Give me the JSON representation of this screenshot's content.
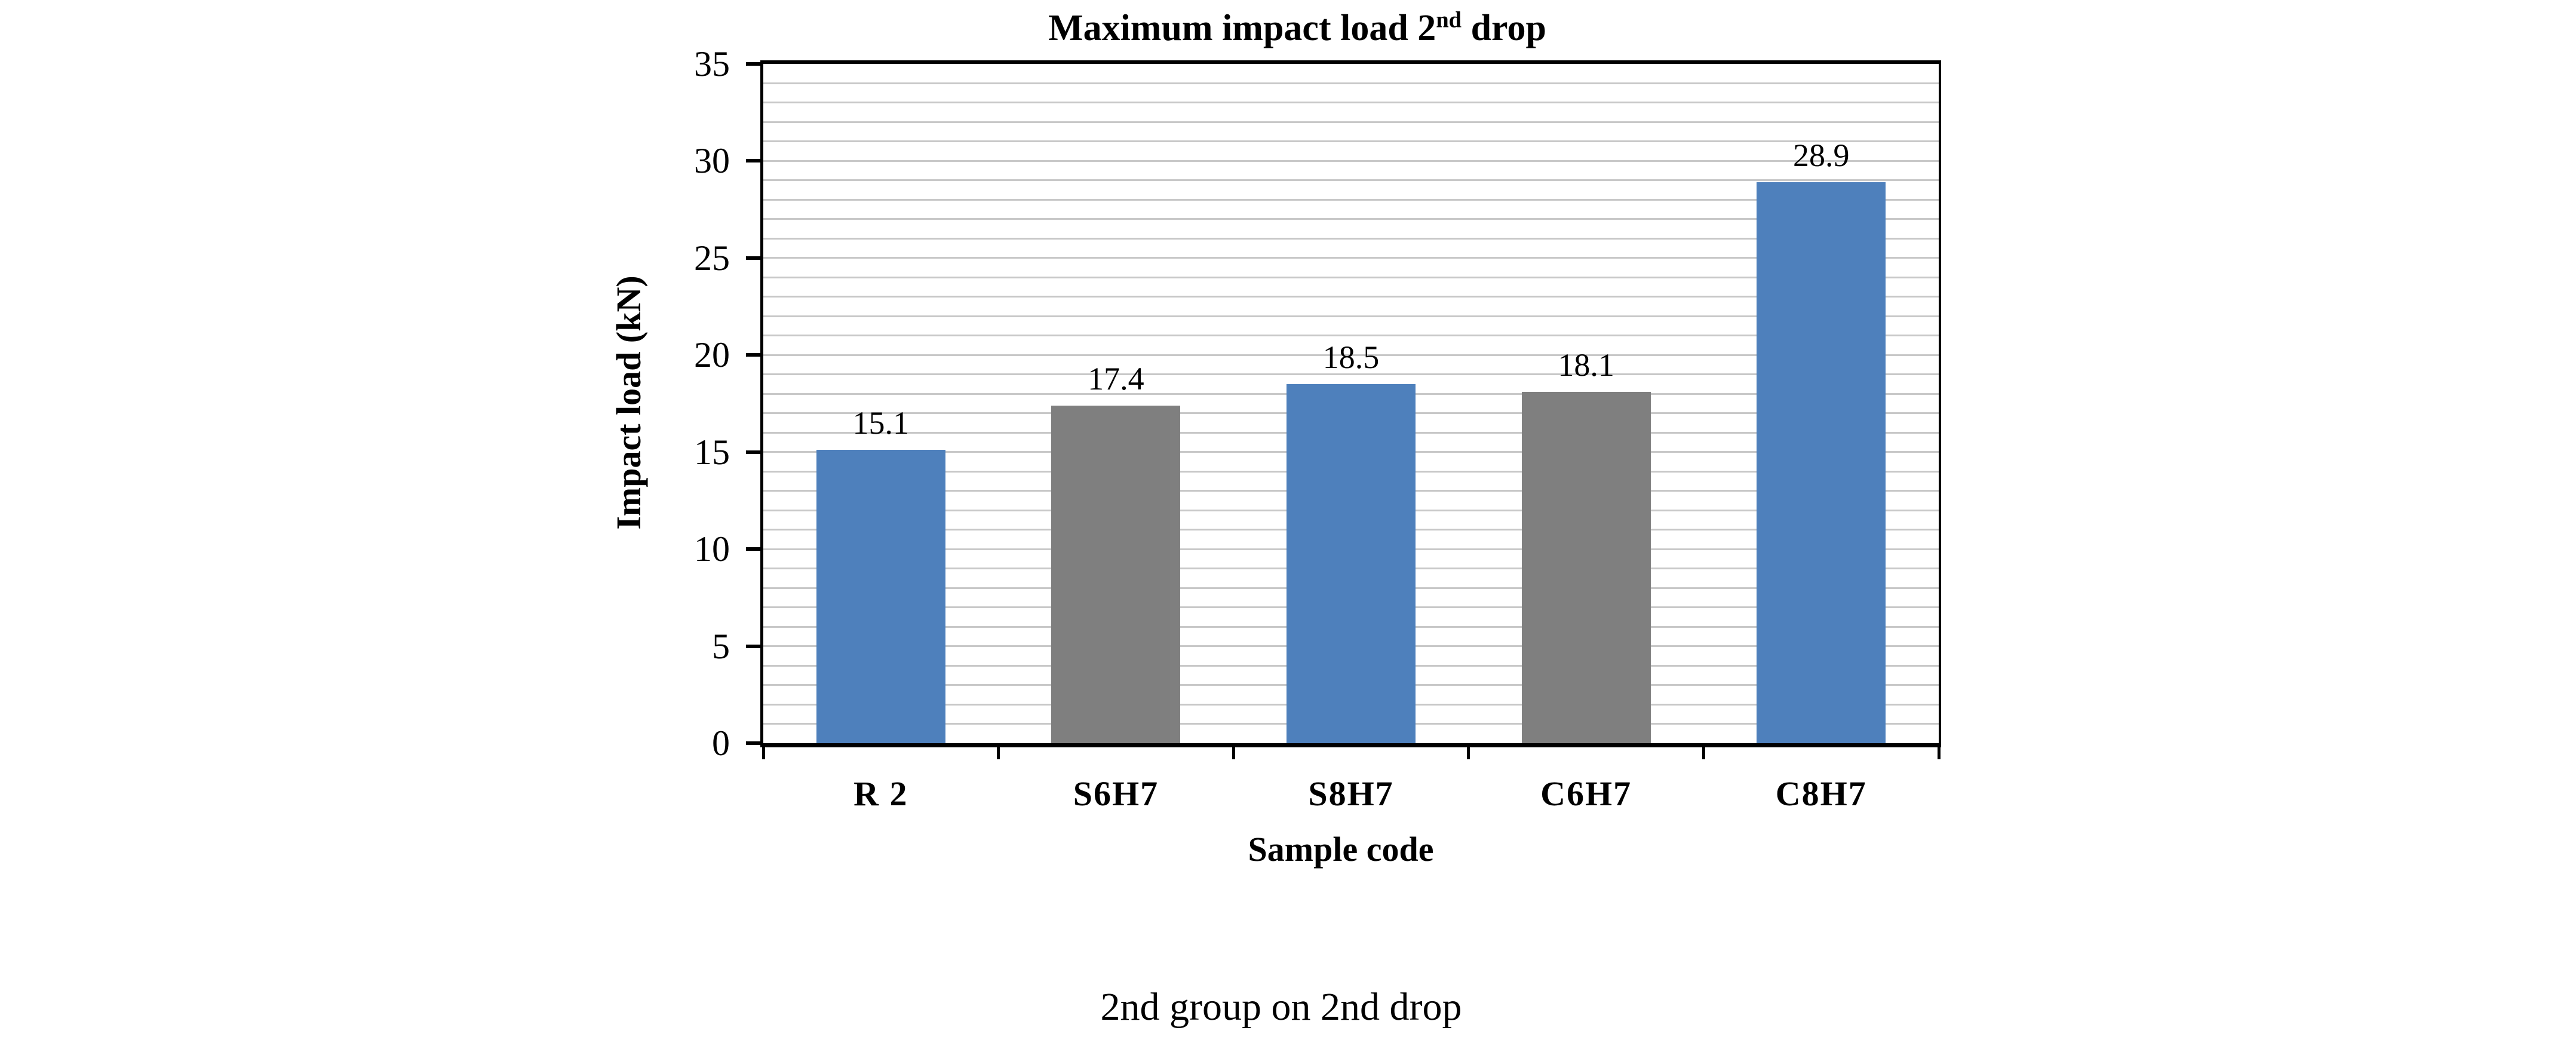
{
  "figure": {
    "caption": "2nd group on 2nd drop"
  },
  "chart_data": {
    "type": "bar",
    "title": "Maximum impact load 2nd drop",
    "title_rich": {
      "before": "Maximum impact load 2",
      "superscript": "nd",
      "after": " drop"
    },
    "xlabel": "Sample code",
    "ylabel": "Impact load (kN)",
    "categories": [
      "R 2",
      "S6H7",
      "S8H7",
      "C6H7",
      "C8H7"
    ],
    "series": [
      {
        "name": "Maximum impact load 2nd drop",
        "values": [
          15.1,
          17.4,
          18.5,
          18.1,
          28.9
        ]
      }
    ],
    "data_labels": [
      "15.1",
      "17.4",
      "18.5",
      "18.1",
      "28.9"
    ],
    "bar_colors_hex": [
      "#4e80bc",
      "#7f7f7f",
      "#4e80bc",
      "#7f7f7f",
      "#4e80bc"
    ],
    "ylim": [
      0,
      35
    ],
    "ytick_interval": 5,
    "ytick_labels": [
      "0",
      "5",
      "10",
      "15",
      "20",
      "25",
      "30",
      "35"
    ],
    "minor_grid_interval": 1,
    "grid": "horizontal minor gridlines",
    "legend": "none",
    "palette": {
      "blue": "#4e80bc",
      "gray": "#7f7f7f",
      "gridline": "#c8c8c8",
      "axis": "#000000",
      "background": "#ffffff"
    }
  }
}
